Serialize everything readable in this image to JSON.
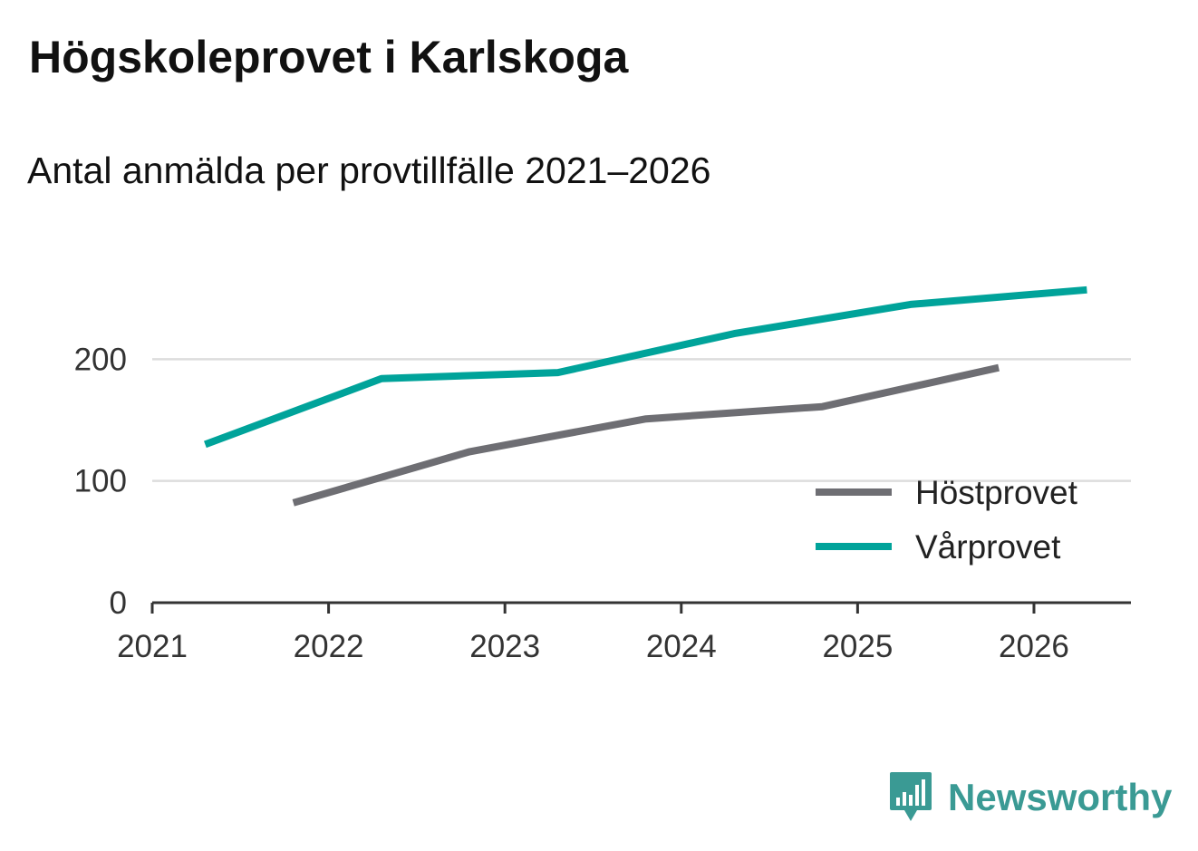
{
  "title": "Högskoleprovet i Karlskoga",
  "subtitle": "Antal anmälda per provtillfälle 2021–2026",
  "brand": {
    "name": "Newsworthy",
    "icon": "newsworthy-logo-icon",
    "color": "#3a9a94"
  },
  "chart_data": {
    "type": "line",
    "xlim": [
      2021,
      2026.55
    ],
    "ylim": [
      0,
      300
    ],
    "x_ticks": [
      "2021",
      "2022",
      "2023",
      "2024",
      "2025",
      "2026"
    ],
    "y_ticks": [
      "0",
      "100",
      "200"
    ],
    "grid": true,
    "legend_position": "bottom-right",
    "series": [
      {
        "name": "Höstprovet",
        "color": "#6e6e73",
        "x": [
          2021.8,
          2022.8,
          2023.8,
          2024.8,
          2025.8
        ],
        "y": [
          82,
          124,
          151,
          161,
          193
        ]
      },
      {
        "name": "Vårprovet",
        "color": "#00a39a",
        "x": [
          2021.3,
          2022.3,
          2023.3,
          2024.3,
          2025.3,
          2026.3
        ],
        "y": [
          130,
          184,
          189,
          221,
          245,
          257
        ]
      }
    ]
  }
}
